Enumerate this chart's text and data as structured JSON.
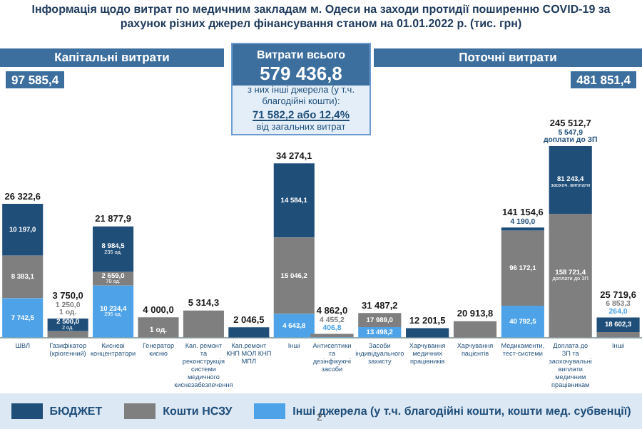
{
  "chart_data": [
    {
      "type": "bar",
      "stacked": true,
      "tick_labels": "x",
      "legend": "bottom",
      "title": "Капітальні витрати",
      "subtitle": "97 585,4",
      "annotations": [
        {
          "text": "1 од.",
          "x": "Генератор кисню",
          "y": 4000.0
        },
        "Інформація щодо витрат по медичним закладам м. Одеси на заходи протидії поширенню COVID-19 за рахунок різних джерел фінансування станом на 01.01.2022 р. (тис. грн)",
        "Витрати всього",
        "579 436,8",
        "з них інші джерела (у т.ч. благодійні кошти):",
        "71 582,2 або 12,4%",
        "від загальних витрат"
      ],
      "categories": [
        "ШВЛ",
        "Газифікатор (кріогенний)",
        "Кисневі концентратори",
        "Генератор кисню",
        "Кап. ремонт та реконструкція системи медичного киснезабезпечення",
        "Кап.ремонт КНП МОЛ КНП МПЛ",
        "Інші"
      ],
      "series": [
        {
          "name": "Інші джерела (у т.ч. благодійні кошти, кошти мед. субвенції)",
          "color": "#4ea3e8",
          "values": [
            7742.5,
            null,
            10234.4,
            null,
            null,
            null,
            4643.8
          ],
          "value_labels": [
            "7 742,5",
            null,
            "10 234,4\n295 од.",
            null,
            null,
            null,
            "4 643,8"
          ]
        },
        {
          "name": "Кошти НСЗУ",
          "color": "#7f7f7f",
          "values": [
            8383.1,
            1250.0,
            2659.0,
            4000.0,
            5314.3,
            null,
            15046.2
          ],
          "value_labels": [
            "8 383,1",
            "1 250,0\n1 од.",
            "2 659,0\n70 од.",
            null,
            null,
            null,
            "15 046,2"
          ]
        },
        {
          "name": "БЮДЖЕТ",
          "color": "#1f4e79",
          "values": [
            10197.0,
            2500.0,
            8984.5,
            null,
            null,
            2046.5,
            14584.1
          ],
          "value_labels": [
            "10 197,0",
            "2 500,0\n2 од.",
            "8 984,5\n235 од.",
            null,
            null,
            null,
            "14 584,1"
          ]
        }
      ],
      "totals": [
        "26 322,6",
        "3 750,0",
        "21 877,9",
        "4 000,0",
        "5 314,3",
        "2 046,5",
        "34 274,1"
      ]
    },
    {
      "type": "bar",
      "stacked": true,
      "tick_labels": "x",
      "title": "Поточні витрати",
      "subtitle": "481 851,4",
      "annotations": [
        "2"
      ],
      "categories": [
        "Антисептики та дезінфікуючі засоби",
        "Засоби індивідуального захисту",
        "Харчування медичних працівників",
        "Харчування пацієнтів",
        "Медикаменти, тест-системи",
        "Доплата до ЗП та заохочувальні виплати медичним працівникам",
        "Інші"
      ],
      "series": [
        {
          "color": "#4ea3e8",
          "values": [
            406.8,
            13498.2,
            null,
            null,
            40792.5,
            null,
            264.0
          ],
          "value_labels": [
            "406,8",
            "13 498,2",
            null,
            null,
            "40 792,5",
            null,
            "264,0"
          ]
        },
        {
          "color": "#7f7f7f",
          "values": [
            4455.2,
            17989.0,
            null,
            20913.8,
            96172.1,
            158721.4,
            6853.3
          ],
          "value_labels": [
            "4 455,2",
            "17 989,0",
            null,
            null,
            "96 172,1",
            "158 721,4\nдоплати до ЗП",
            "6 853,3"
          ]
        },
        {
          "color": "#1f4e79",
          "values": [
            null,
            null,
            12201.5,
            null,
            4190.0,
            81243.4,
            18602.3
          ],
          "value_labels": [
            null,
            null,
            null,
            null,
            "4 190,0",
            "81 243,4\nзаохоч. виплати",
            "18 602,3"
          ]
        },
        {
          "color": "#1f4e79",
          "values": [
            null,
            null,
            null,
            null,
            null,
            5547.9,
            null
          ],
          "value_labels": [
            null,
            null,
            null,
            null,
            null,
            "5 547,9\nдоплати до ЗП",
            null
          ]
        }
      ],
      "totals": [
        "4 862,0",
        "31 487,2",
        "12 201,5",
        "20 913,8",
        "141 154,6",
        "245 512,7",
        "25 719,6"
      ]
    }
  ]
}
